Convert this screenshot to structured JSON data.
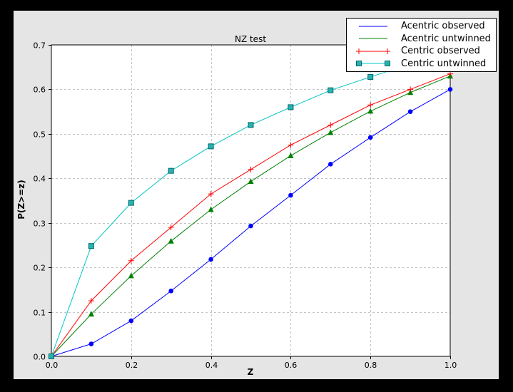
{
  "figure": {
    "outer_background": "#000000",
    "figure_background": "#e5e5e5",
    "plot_background": "#ffffff",
    "grid_color": "#c4c4c4"
  },
  "chart_data": {
    "type": "line",
    "title": "NZ test",
    "xlabel": "Z",
    "ylabel": "P(Z>=z)",
    "xlim": [
      0.0,
      1.0
    ],
    "ylim": [
      0.0,
      0.7
    ],
    "grid": true,
    "legend_position": "upper right",
    "xticks": [
      0.0,
      0.2,
      0.4,
      0.6,
      0.8,
      1.0
    ],
    "yticks": [
      0.0,
      0.1,
      0.2,
      0.3,
      0.4,
      0.5,
      0.6,
      0.7
    ],
    "xtick_labels": [
      "0.0",
      "0.2",
      "0.4",
      "0.6",
      "0.8",
      "1.0"
    ],
    "ytick_labels": [
      "0.0",
      "0.1",
      "0.2",
      "0.3",
      "0.4",
      "0.5",
      "0.6",
      "0.7"
    ],
    "x": [
      0.0,
      0.1,
      0.2,
      0.3,
      0.4,
      0.5,
      0.6,
      0.7,
      0.8,
      0.9,
      1.0
    ],
    "series": [
      {
        "name": "Acentric observed",
        "color": "#0000ff",
        "marker": "circle",
        "legend_markers": false,
        "values": [
          0.0,
          0.028,
          0.08,
          0.147,
          0.218,
          0.293,
          0.362,
          0.432,
          0.492,
          0.55,
          0.6
        ]
      },
      {
        "name": "Acentric untwinned",
        "color": "#008000",
        "marker": "triangle",
        "legend_markers": false,
        "values": [
          0.0,
          0.095,
          0.181,
          0.259,
          0.33,
          0.393,
          0.451,
          0.503,
          0.551,
          0.593,
          0.63
        ]
      },
      {
        "name": "Centric observed",
        "color": "#ff0000",
        "marker": "plus",
        "legend_markers": true,
        "values": [
          0.0,
          0.125,
          0.215,
          0.29,
          0.365,
          0.42,
          0.475,
          0.52,
          0.565,
          0.6,
          0.635
        ]
      },
      {
        "name": "Centric untwinned",
        "color": "#00c4c4",
        "marker": "square",
        "marker_fill": "#2ab2b2",
        "marker_edge": "#006868",
        "legend_markers": true,
        "values": [
          0.0,
          0.248,
          0.345,
          0.417,
          0.472,
          0.52,
          0.56,
          0.598,
          0.628,
          0.657,
          0.683
        ]
      }
    ]
  }
}
